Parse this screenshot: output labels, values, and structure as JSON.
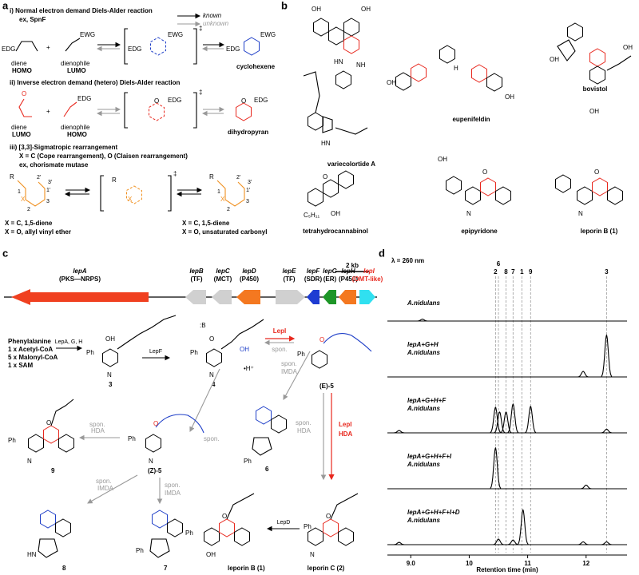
{
  "a": {
    "label": "a",
    "title_i": "i) Normal electron demand Diels-Alder reaction",
    "ex_i": "ex, SpnF",
    "known": "known",
    "unknown": "unknown",
    "edg": "EDG",
    "ewg": "EWG",
    "diene": "diene",
    "dienophile": "dienophile",
    "homo": "HOMO",
    "lumo": "LUMO",
    "cyclohexene": "cyclohexene",
    "ts": "‡",
    "title_ii": "ii) Inverse electron demand (hetero) Diels-Alder reaction",
    "dihydropyran": "dihydropyran",
    "o": "O",
    "title_iii": "iii) [3,3]-Sigmatropic rearrangement",
    "x_def": "X = C (Cope rearrangement), O (Claisen rearrangement)",
    "ex_iii": "ex, chorismate mutase",
    "r": "R",
    "x": "X",
    "num": [
      "1",
      "2",
      "3",
      "1'",
      "2'",
      "3'"
    ],
    "xc": "X = C, 1,5-diene",
    "xo_left": "X = O, allyl vinyl ether",
    "xo_right": "X = O, unsaturated carbonyl"
  },
  "b": {
    "label": "b",
    "compounds": [
      "variecolortide A",
      "eupenifeldin",
      "bovistol",
      "tetrahydrocannabinol",
      "epipyridone",
      "leporin B (1)"
    ],
    "atoms": {
      "oh": "OH",
      "o": "O",
      "hn": "HN",
      "h": "H",
      "nh": "NH",
      "c5": "C₅H₁₁",
      "n": "N"
    }
  },
  "c": {
    "label": "c",
    "scale": "2 kb",
    "genes": [
      {
        "name": "lepA",
        "role": "(PKS—NRPS)"
      },
      {
        "name": "lepB",
        "role": "(TF)"
      },
      {
        "name": "lepC",
        "role": "(MCT)"
      },
      {
        "name": "lepD",
        "role": "(P450)"
      },
      {
        "name": "lepE",
        "role": "(TF)"
      },
      {
        "name": "lepF",
        "role": "(SDR)"
      },
      {
        "name": "lepG",
        "role": "(ER)"
      },
      {
        "name": "lepH",
        "role": "(P450)"
      },
      {
        "name": "lepI",
        "role": "(OMT-like)"
      }
    ],
    "precursors": [
      "Phenylalanine",
      "1 x Acetyl-CoA",
      "5 x Malonyl-CoA",
      "1 x SAM"
    ],
    "enzymes": "LepA, G, H",
    "lepf": "LepF",
    "lepi": "LepI",
    "hda": "HDA",
    "lepd": "LepD",
    "spon": "spon.",
    "imda": "IMDA",
    "base": ":B",
    "hplus": "•H⁺",
    "compounds": [
      "3",
      "4",
      "(E)-5",
      "(Z)-5",
      "6",
      "7",
      "8",
      "9",
      "leporin C (2)",
      "leporin B (1)"
    ],
    "atoms": {
      "ph": "Ph",
      "oh": "OH",
      "o": "O",
      "n": "N",
      "h": "H",
      "hn": "HN"
    }
  },
  "chart_data": {
    "type": "line",
    "label": "d",
    "subtitle": "λ = 260 nm",
    "x_label": "Retention time (min)",
    "xlim": [
      8.6,
      12.7
    ],
    "xticks": [
      {
        "value": 9,
        "label": "9.0"
      },
      10,
      11,
      12
    ],
    "markers": [
      {
        "label": "2",
        "x": 10.45
      },
      {
        "label": "6",
        "x": 10.5
      },
      {
        "label": "8",
        "x": 10.63
      },
      {
        "label": "7",
        "x": 10.75
      },
      {
        "label": "1",
        "x": 10.9
      },
      {
        "label": "9",
        "x": 11.05
      },
      {
        "label": "3",
        "x": 12.35
      }
    ],
    "series": [
      {
        "name": "A.nidulans",
        "peaks": [
          {
            "x": 9.2,
            "height": 0.04
          }
        ]
      },
      {
        "name": "lepA+G+H",
        "host": "A.nidulans",
        "peaks": [
          {
            "x": 11.95,
            "height": 0.12
          },
          {
            "x": 12.35,
            "height": 0.9
          }
        ]
      },
      {
        "name": "lepA+G+H+F",
        "host": "A.nidulans",
        "peaks": [
          {
            "x": 8.8,
            "height": 0.05
          },
          {
            "x": 10.45,
            "height": 0.55
          },
          {
            "x": 10.52,
            "height": 0.45
          },
          {
            "x": 10.63,
            "height": 0.45
          },
          {
            "x": 10.75,
            "height": 0.62
          },
          {
            "x": 11.05,
            "height": 0.57
          },
          {
            "x": 12.35,
            "height": 0.08
          }
        ]
      },
      {
        "name": "lepA+G+H+F+I",
        "host": "A.nidulans",
        "peaks": [
          {
            "x": 10.45,
            "height": 0.88
          },
          {
            "x": 12.0,
            "height": 0.08
          }
        ]
      },
      {
        "name": "lepA+G+H+F+I+D",
        "host": "A.nidulans",
        "peaks": [
          {
            "x": 8.8,
            "height": 0.05
          },
          {
            "x": 10.5,
            "height": 0.12
          },
          {
            "x": 10.75,
            "height": 0.1
          },
          {
            "x": 10.92,
            "height": 0.75
          },
          {
            "x": 11.95,
            "height": 0.06
          },
          {
            "x": 12.35,
            "height": 0.06
          }
        ]
      }
    ]
  }
}
